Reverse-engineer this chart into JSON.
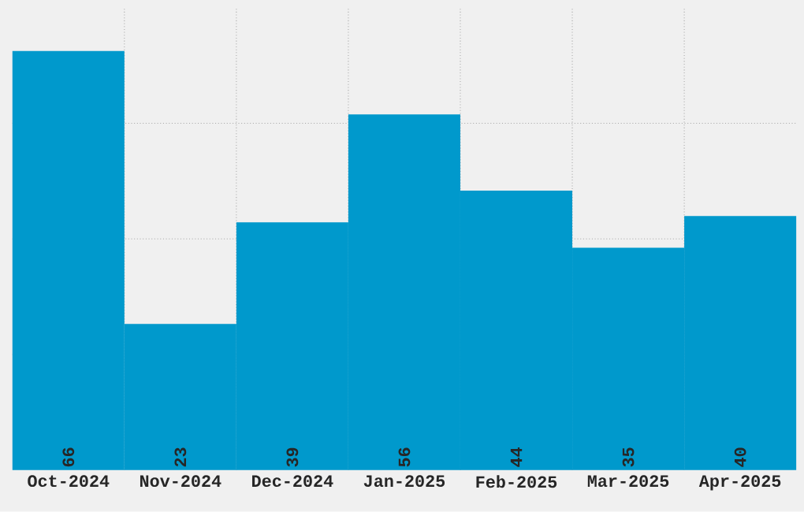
{
  "chart_data": {
    "type": "bar",
    "categories": [
      "Oct-2024",
      "Nov-2024",
      "Dec-2024",
      "Jan-2025",
      "Feb-2025",
      "Mar-2025",
      "Apr-2025"
    ],
    "values": [
      66,
      23,
      39,
      56,
      44,
      35,
      40
    ],
    "color": "#0099cc",
    "ylim": [
      0,
      72.8
    ],
    "yticks": [
      {
        "value": 18.2,
        "label": null
      },
      {
        "value": 36.4,
        "label": null
      },
      {
        "value": 54.6,
        "label": null
      }
    ],
    "grid": true,
    "data_labels": true,
    "tick_labels": "x"
  }
}
